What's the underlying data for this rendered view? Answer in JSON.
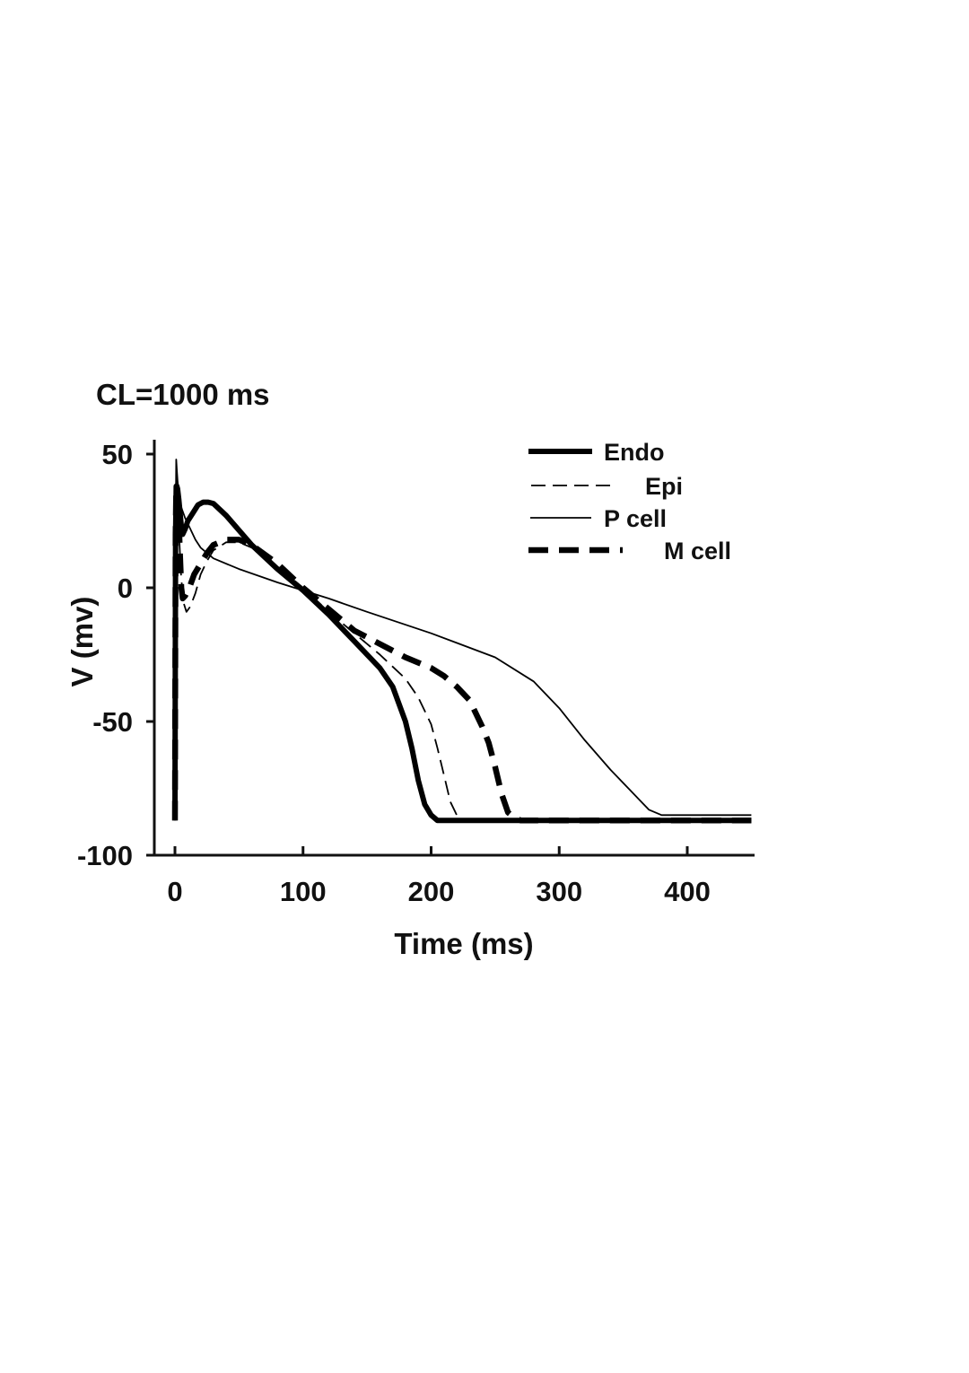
{
  "chart_data": {
    "type": "line",
    "title": "CL=1000 ms",
    "xlabel": "Time (ms)",
    "ylabel": "V (mv)",
    "xlim": [
      -15,
      453
    ],
    "ylim": [
      -100,
      55
    ],
    "xticks": [
      0,
      100,
      200,
      300,
      400
    ],
    "yticks": [
      50,
      0,
      -50,
      -100
    ],
    "grid": false,
    "legend_position": "top-right",
    "series": [
      {
        "name": "Endo",
        "style": "solid-thick",
        "color": "#000000",
        "x": [
          0,
          0.5,
          1,
          1.5,
          2,
          3,
          4,
          5,
          6,
          8,
          10,
          14,
          18,
          22,
          26,
          30,
          40,
          60,
          80,
          100,
          120,
          140,
          160,
          170,
          180,
          185,
          190,
          195,
          200,
          205,
          210,
          230,
          260,
          300,
          350,
          400,
          450
        ],
        "y": [
          -87,
          20,
          38,
          38,
          37,
          33,
          28,
          23,
          20,
          22,
          25,
          28,
          31,
          32,
          32,
          31.5,
          27,
          16,
          7,
          -1,
          -10,
          -20,
          -30,
          -37,
          -50,
          -60,
          -72,
          -81,
          -85,
          -87,
          -87,
          -87,
          -87,
          -87,
          -87,
          -87,
          -87
        ]
      },
      {
        "name": "Epi",
        "style": "dashed-thin",
        "color": "#000000",
        "x": [
          0,
          0.5,
          1,
          1.5,
          2,
          3,
          4,
          5,
          7,
          9,
          12,
          16,
          20,
          25,
          30,
          40,
          50,
          60,
          80,
          100,
          120,
          140,
          160,
          180,
          190,
          200,
          205,
          210,
          215,
          220,
          225,
          230,
          250,
          300,
          350,
          400,
          450
        ],
        "y": [
          -87,
          25,
          42,
          40,
          35,
          22,
          12,
          3,
          -6,
          -9,
          -7,
          -2,
          5,
          10,
          14,
          17,
          17,
          15,
          8,
          0,
          -9,
          -17,
          -25,
          -34,
          -41,
          -51,
          -60,
          -70,
          -80,
          -85,
          -87,
          -87,
          -87,
          -87,
          -87,
          -87,
          -87
        ]
      },
      {
        "name": "P cell",
        "style": "solid-thin",
        "color": "#000000",
        "x": [
          0,
          0.5,
          1,
          1.5,
          2,
          3,
          5,
          8,
          12,
          16,
          20,
          30,
          50,
          80,
          100,
          120,
          150,
          200,
          250,
          280,
          300,
          320,
          340,
          350,
          360,
          370,
          380,
          400,
          450
        ],
        "y": [
          -87,
          20,
          48,
          44,
          40,
          35,
          30,
          26,
          22,
          18,
          15,
          11,
          7,
          2,
          -1,
          -4,
          -9,
          -17,
          -26,
          -35,
          -45,
          -57,
          -68,
          -73,
          -78,
          -83,
          -85,
          -85,
          -85
        ]
      },
      {
        "name": "M cell",
        "style": "dashed-thick",
        "color": "#000000",
        "x": [
          0,
          0.5,
          1,
          1.5,
          2,
          3,
          4,
          5,
          6,
          8,
          10,
          12,
          15,
          20,
          25,
          30,
          40,
          50,
          60,
          80,
          100,
          120,
          140,
          160,
          180,
          200,
          210,
          220,
          230,
          240,
          245,
          250,
          255,
          260,
          265,
          270,
          290,
          350,
          400,
          450
        ],
        "y": [
          -87,
          20,
          37,
          36,
          34,
          25,
          12,
          0,
          -4,
          -3,
          -1,
          1,
          5,
          9,
          13,
          16,
          18,
          18,
          16,
          9,
          0,
          -8,
          -16,
          -21,
          -26,
          -30,
          -33,
          -37,
          -42,
          -52,
          -58,
          -67,
          -77,
          -84,
          -86,
          -87,
          -87,
          -87,
          -87,
          -87
        ]
      }
    ]
  }
}
